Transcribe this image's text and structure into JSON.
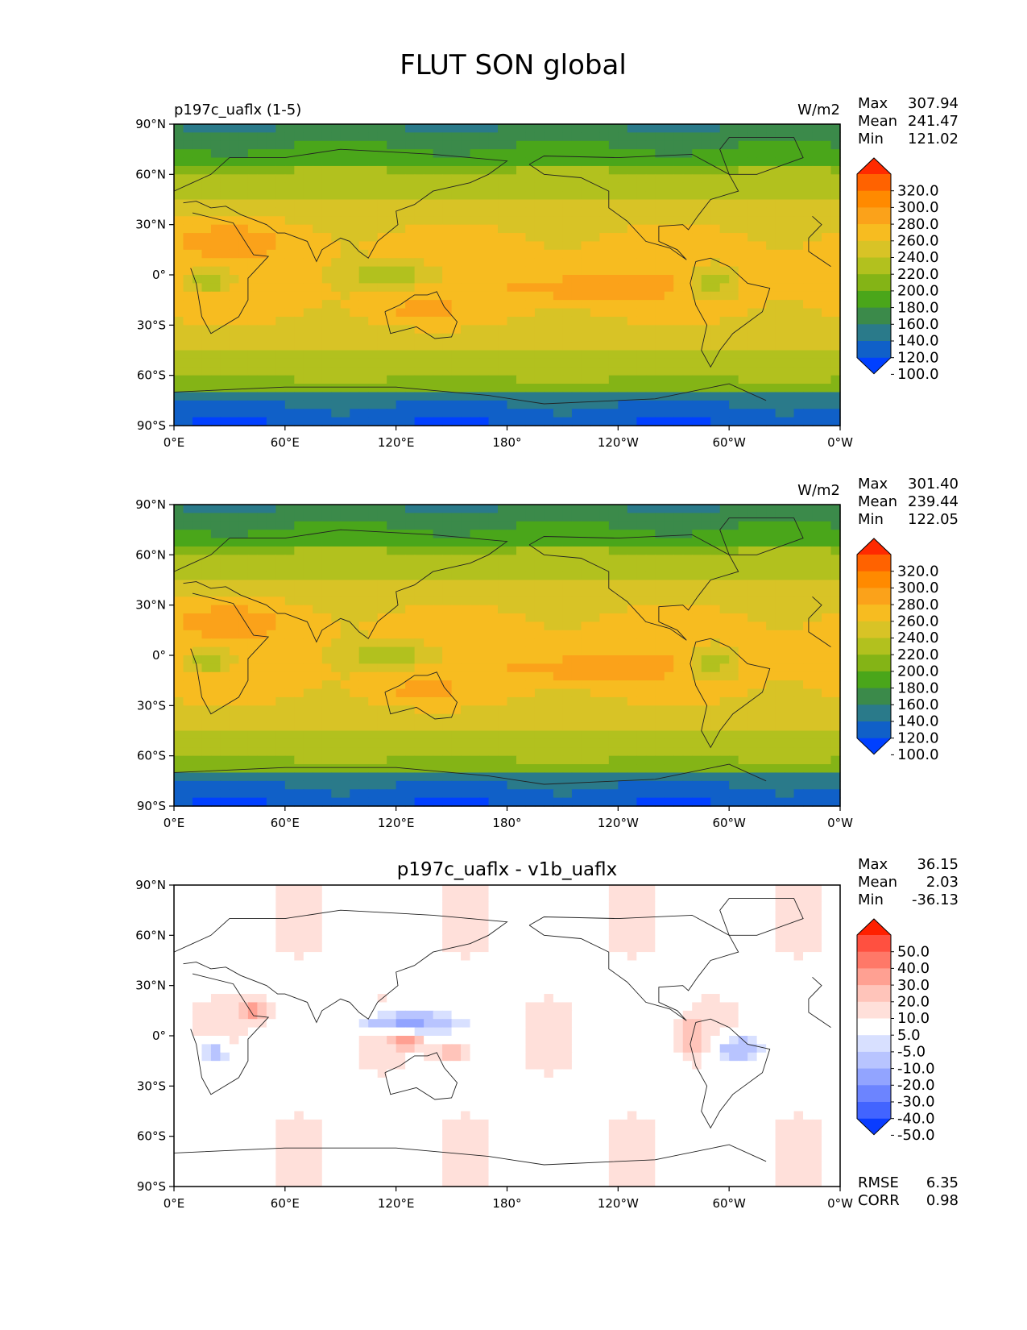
{
  "title": "FLUT SON global",
  "panels": [
    {
      "id": "test",
      "subtitle_left": "p197c_uaflx (1-5)",
      "subtitle_center": "",
      "units": "W/m2",
      "stats": [
        {
          "label": "Max",
          "value": "307.94"
        },
        {
          "label": "Mean",
          "value": "241.47"
        },
        {
          "label": "Min",
          "value": "121.02"
        }
      ],
      "colorbar": {
        "labels": [
          "320.0",
          "300.0",
          "280.0",
          "260.0",
          "240.0",
          "220.0",
          "200.0",
          "180.0",
          "160.0",
          "140.0",
          "120.0",
          "100.0"
        ],
        "colors": [
          "#ff2a00",
          "#ff6200",
          "#ff8a00",
          "#fba21a",
          "#f7bc20",
          "#d8c326",
          "#b2c11e",
          "#84b416",
          "#4aa61a",
          "#3b8a4a",
          "#2a7a8a",
          "#1060c8",
          "#0040ff"
        ]
      },
      "field": "full"
    },
    {
      "id": "reference",
      "subtitle_left": "",
      "subtitle_center": "",
      "units": "W/m2",
      "stats": [
        {
          "label": "Max",
          "value": "301.40"
        },
        {
          "label": "Mean",
          "value": "239.44"
        },
        {
          "label": "Min",
          "value": "122.05"
        }
      ],
      "colorbar": {
        "labels": [
          "320.0",
          "300.0",
          "280.0",
          "260.0",
          "240.0",
          "220.0",
          "200.0",
          "180.0",
          "160.0",
          "140.0",
          "120.0",
          "100.0"
        ],
        "colors": [
          "#ff2a00",
          "#ff6200",
          "#ff8a00",
          "#fba21a",
          "#f7bc20",
          "#d8c326",
          "#b2c11e",
          "#84b416",
          "#4aa61a",
          "#3b8a4a",
          "#2a7a8a",
          "#1060c8",
          "#0040ff"
        ]
      },
      "field": "full"
    },
    {
      "id": "difference",
      "subtitle_left": "",
      "subtitle_center": "p197c_uaflx - v1b_uaflx",
      "units": "",
      "stats": [
        {
          "label": "Max",
          "value": "36.15"
        },
        {
          "label": "Mean",
          "value": "2.03"
        },
        {
          "label": "Min",
          "value": "-36.13"
        }
      ],
      "colorbar": {
        "labels": [
          "50.0",
          "40.0",
          "30.0",
          "20.0",
          "10.0",
          "5.0",
          "-5.0",
          "-10.0",
          "-20.0",
          "-30.0",
          "-40.0",
          "-50.0"
        ],
        "colors": [
          "#ff2000",
          "#ff5040",
          "#ff7868",
          "#ffa092",
          "#ffc4ba",
          "#ffe0da",
          "#ffffff",
          "#d8e0ff",
          "#b8c4ff",
          "#92a4ff",
          "#6c84ff",
          "#4264ff",
          "#0a3cff"
        ]
      },
      "extra_stats": [
        {
          "label": "RMSE",
          "value": "6.35"
        },
        {
          "label": "CORR",
          "value": "0.98"
        }
      ],
      "field": "diff"
    }
  ],
  "axes": {
    "lon_ticks": [
      "0°E",
      "60°E",
      "120°E",
      "180°",
      "120°W",
      "60°W",
      "0°W"
    ],
    "lat_ticks": [
      "90°N",
      "60°N",
      "30°N",
      "0°",
      "30°S",
      "60°S",
      "90°S"
    ]
  }
}
